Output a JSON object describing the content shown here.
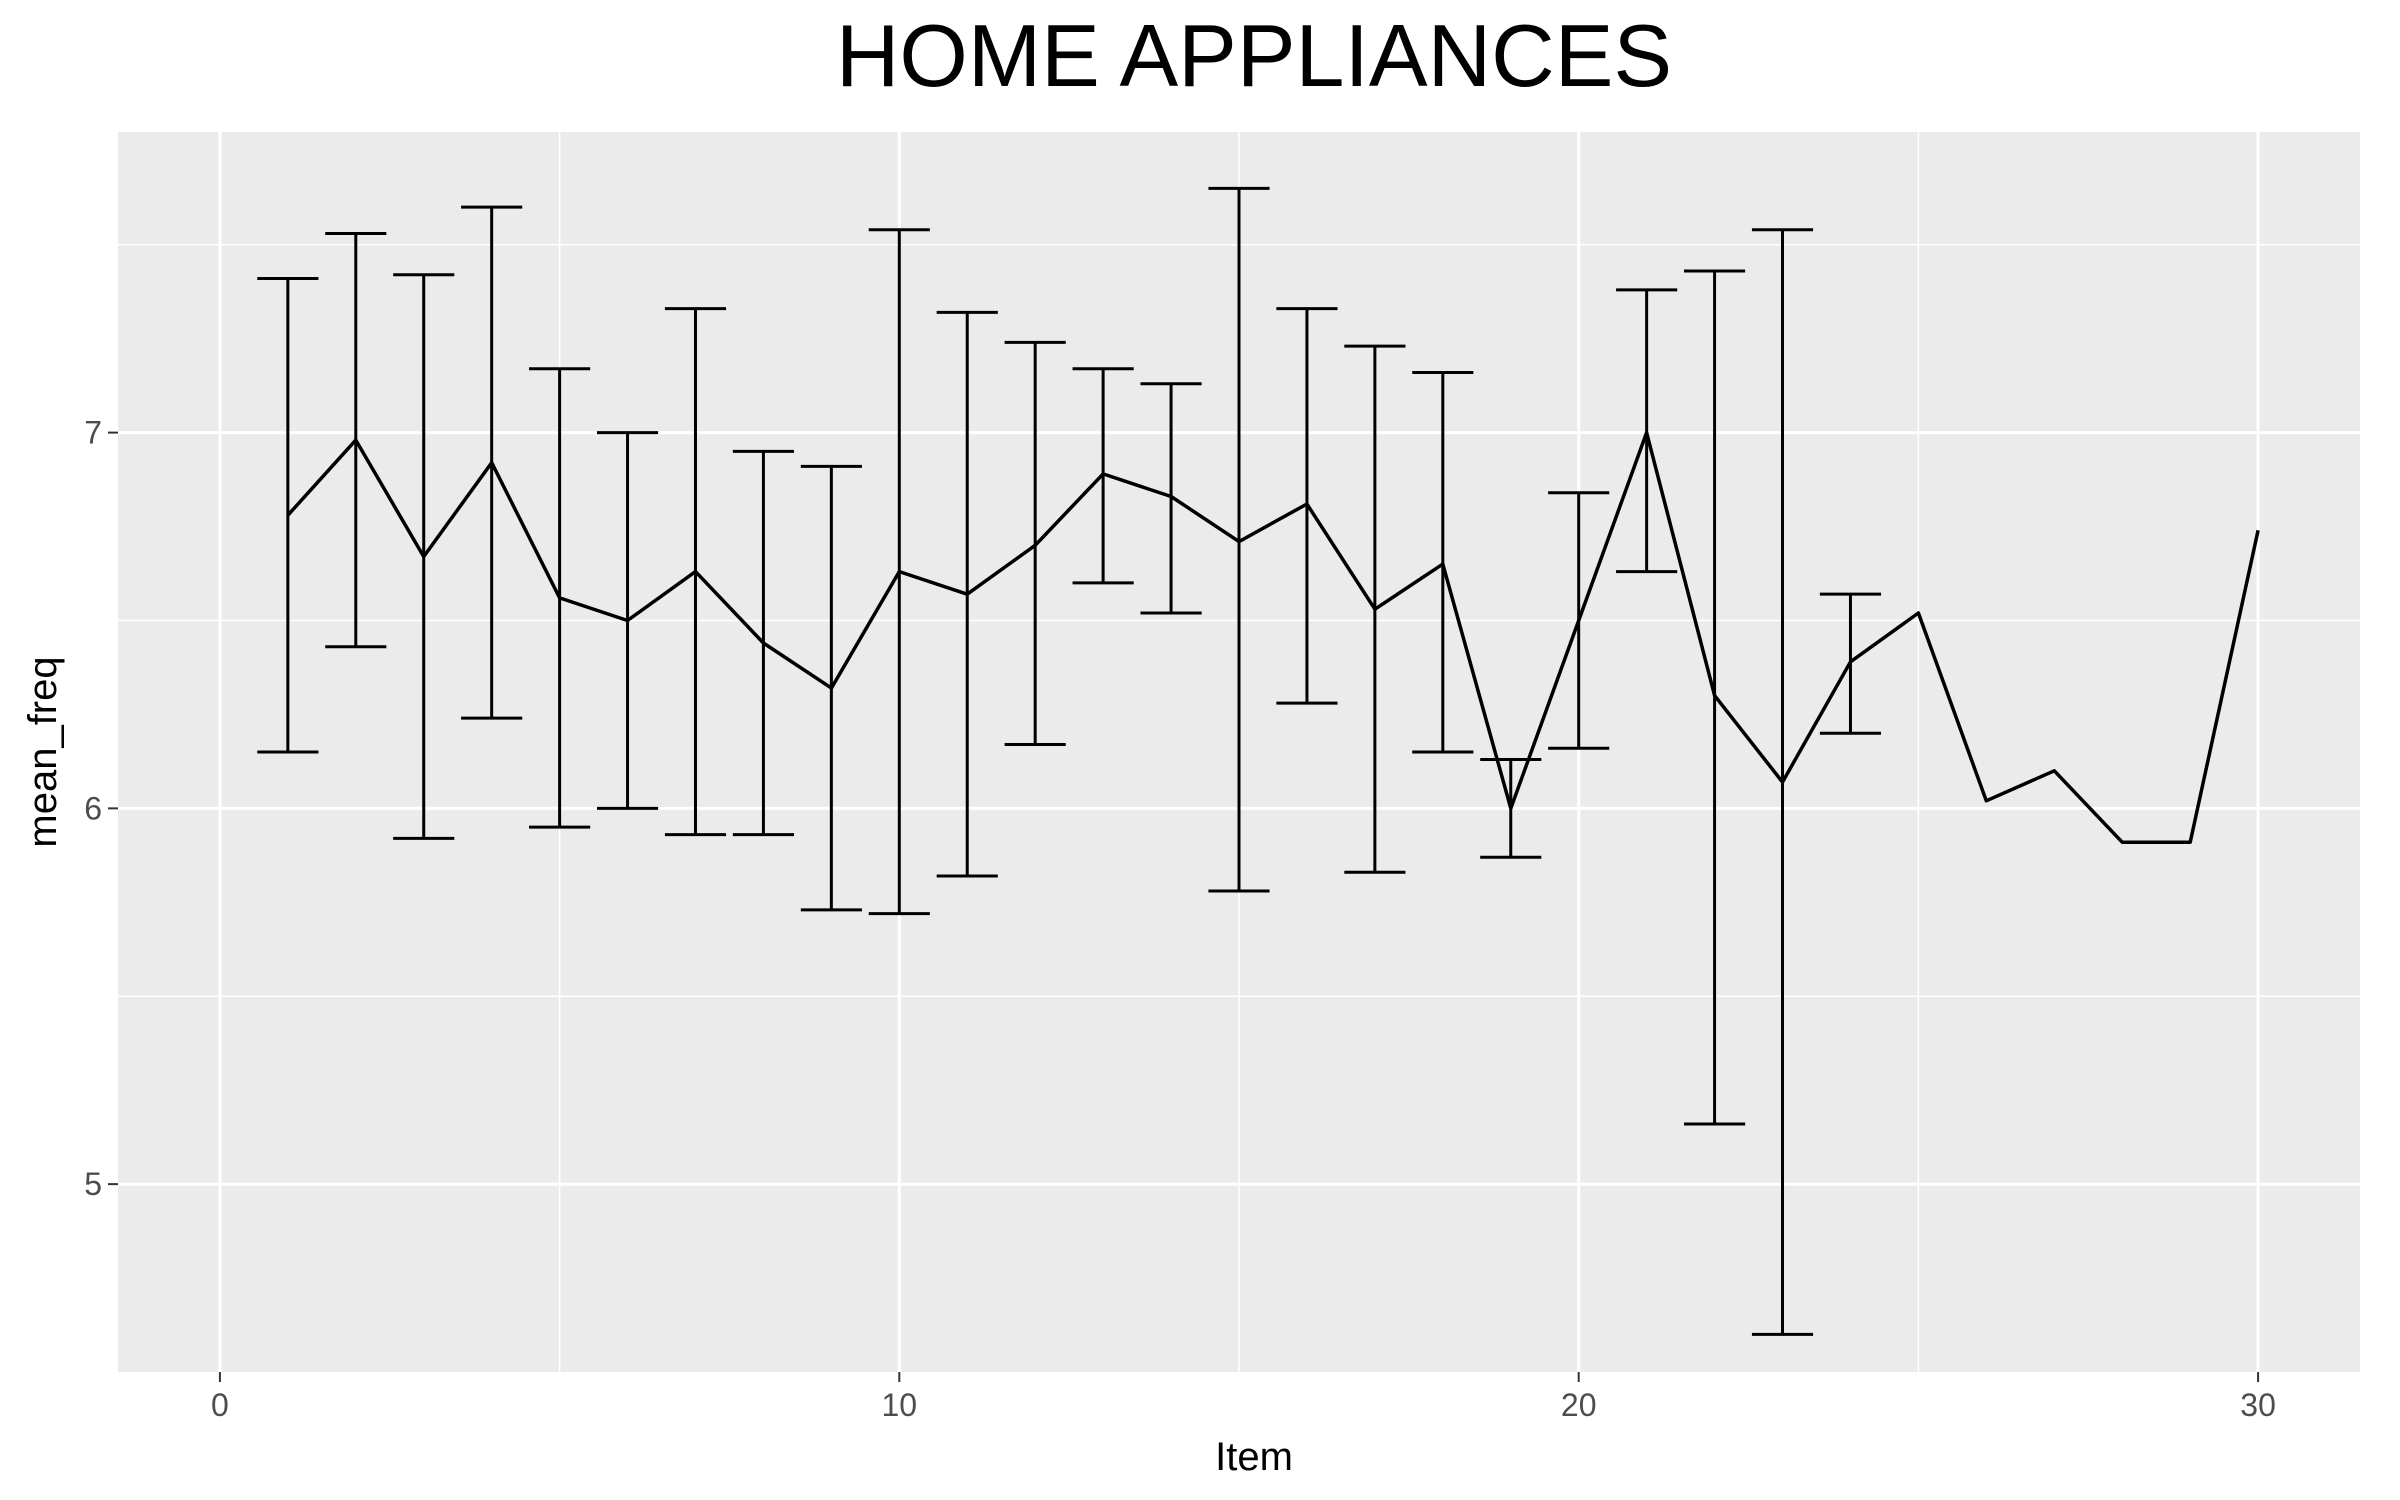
{
  "chart_data": {
    "type": "line",
    "title": "HOME APPLIANCES",
    "xlabel": "Item",
    "ylabel": "mean_freq",
    "xlim": [
      -1.5,
      31.5
    ],
    "ylim": [
      4.5,
      7.8
    ],
    "x_ticks": [
      0,
      10,
      20,
      30
    ],
    "x_tick_labels": [
      "0",
      "10",
      "20",
      "30"
    ],
    "y_ticks": [
      5,
      6,
      7
    ],
    "y_tick_labels": [
      "5",
      "6",
      "7"
    ],
    "grid": true,
    "legend": "none",
    "colors": {
      "panel": "#ebebeb",
      "grid": "#ffffff",
      "line": "#000000"
    },
    "series": [
      {
        "x": [
          1,
          2,
          3,
          4,
          5,
          6,
          7,
          8,
          9,
          10,
          11,
          12,
          13,
          14,
          15,
          16,
          17,
          18,
          19,
          20,
          21,
          22,
          23,
          24,
          25,
          26,
          27,
          28,
          29,
          30
        ],
        "values": [
          6.78,
          6.98,
          6.67,
          6.92,
          6.56,
          6.5,
          6.63,
          6.44,
          6.32,
          6.63,
          6.57,
          6.7,
          6.89,
          6.83,
          6.71,
          6.81,
          6.53,
          6.65,
          6.0,
          6.5,
          7.0,
          6.3,
          6.07,
          6.39,
          6.52,
          6.02,
          6.1,
          5.91,
          5.91,
          6.74
        ],
        "error_low": [
          6.15,
          6.43,
          5.92,
          6.24,
          5.95,
          6.0,
          5.93,
          5.93,
          5.73,
          5.72,
          5.82,
          6.17,
          6.6,
          6.52,
          5.78,
          6.28,
          5.83,
          6.15,
          5.87,
          6.16,
          6.63,
          5.16,
          4.6,
          6.2,
          null,
          null,
          null,
          null,
          null,
          null
        ],
        "error_high": [
          7.41,
          7.53,
          7.42,
          7.6,
          7.17,
          7.0,
          7.33,
          6.95,
          6.91,
          7.54,
          7.32,
          7.24,
          7.17,
          7.13,
          7.65,
          7.33,
          7.23,
          7.16,
          6.13,
          6.84,
          7.38,
          7.43,
          7.54,
          6.57,
          null,
          null,
          null,
          null,
          null,
          null
        ]
      }
    ]
  }
}
